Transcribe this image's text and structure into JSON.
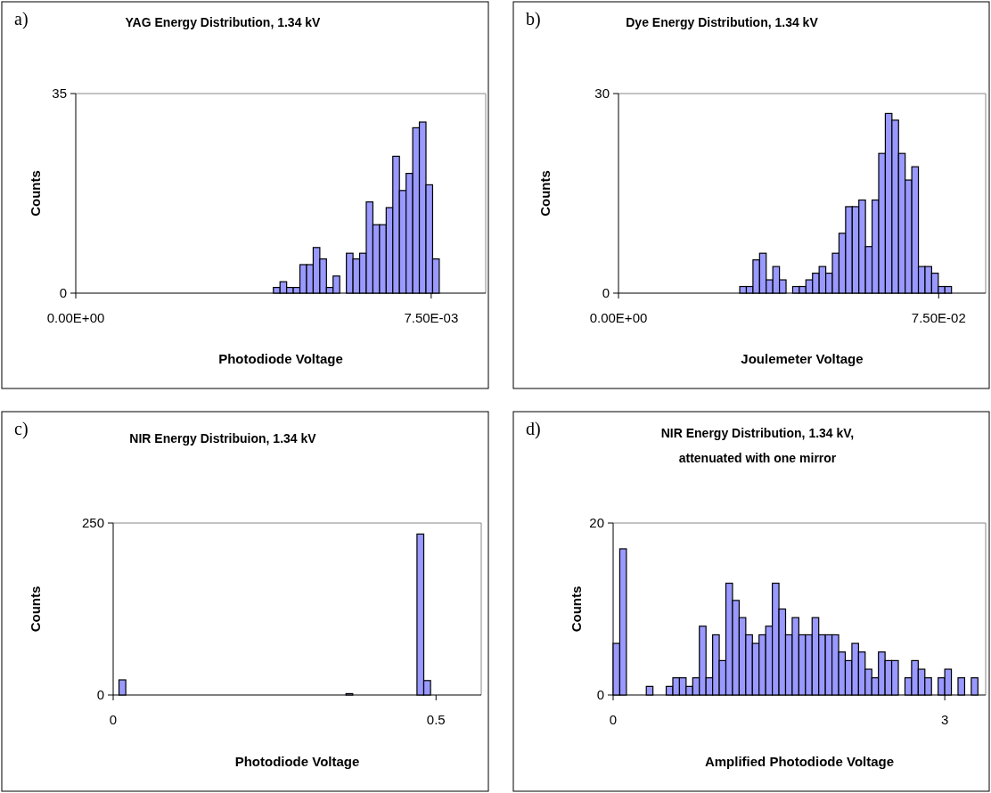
{
  "chart_data": [
    {
      "type": "histogram",
      "title": "YAG Energy Distribution, 1.34 kV",
      "xlabel": "Photodiode Voltage",
      "ylabel": "Counts",
      "annotations": [
        "a)"
      ],
      "color": "#9999ff",
      "bins": [
        0.00417,
        0.00431,
        0.00445,
        0.00459,
        0.00473,
        0.00487,
        0.00501,
        0.00515,
        0.00529,
        0.00543,
        0.00557,
        0.00571,
        0.00585,
        0.00599,
        0.00613,
        0.00627,
        0.00641,
        0.00655,
        0.00669,
        0.00683,
        0.00697,
        0.00711,
        0.00725,
        0.00739,
        0.00753,
        0.00767
      ],
      "values": [
        1,
        2,
        1,
        1,
        5,
        5,
        8,
        6,
        1,
        3,
        0,
        7,
        6,
        7,
        16,
        12,
        12,
        15,
        24,
        18,
        21,
        29,
        30,
        19,
        6
      ],
      "xlim": [
        0,
        0.00865
      ],
      "xticks": [
        {
          "value": 0,
          "label": "0.00E+00"
        },
        {
          "value": 0.0075,
          "label": "7.50E-03"
        }
      ],
      "ylim": [
        0,
        35
      ],
      "yticks": [
        0,
        35
      ]
    },
    {
      "type": "histogram",
      "title": "Dye Energy Distribution, 1.34 kV",
      "xlabel": "Joulemeter Voltage",
      "ylabel": "Counts",
      "annotations": [
        "b)"
      ],
      "color": "#9999ff",
      "bins": [
        0.0284,
        0.02995,
        0.0315,
        0.03305,
        0.0346,
        0.03615,
        0.0377,
        0.03925,
        0.0408,
        0.04235,
        0.0439,
        0.04545,
        0.047,
        0.04855,
        0.0501,
        0.05165,
        0.0532,
        0.05475,
        0.0563,
        0.05785,
        0.0594,
        0.06095,
        0.0625,
        0.06405,
        0.0656,
        0.06715,
        0.0687,
        0.07025,
        0.0718,
        0.07335,
        0.0749,
        0.07645,
        0.078
      ],
      "values": [
        1,
        1,
        5,
        6,
        2,
        4,
        2,
        0,
        1,
        1,
        2,
        3,
        4,
        3,
        6,
        9,
        13,
        13,
        14,
        7,
        14,
        21,
        27,
        26,
        21,
        17,
        19,
        4,
        4,
        3,
        1,
        1
      ],
      "xlim": [
        0,
        0.086
      ],
      "xticks": [
        {
          "value": 0,
          "label": "0.00E+00"
        },
        {
          "value": 0.075,
          "label": "7.50E-02"
        }
      ],
      "ylim": [
        0,
        30
      ],
      "yticks": [
        0,
        30
      ]
    },
    {
      "type": "histogram",
      "title": "NIR Energy Distribuion, 1.34 kV",
      "xlabel": "Photodiode Voltage",
      "ylabel": "Counts",
      "annotations": [
        "c)"
      ],
      "color": "#9999ff",
      "bins": [
        0.009,
        0.0195,
        0.3605,
        0.371,
        0.4705,
        0.481,
        0.4915
      ],
      "values": [
        22,
        0,
        2,
        0,
        234,
        21
      ],
      "xlim": [
        0,
        0.57
      ],
      "xticks": [
        0,
        0.5
      ],
      "ylim": [
        0,
        250
      ],
      "yticks": [
        0,
        250
      ]
    },
    {
      "type": "histogram",
      "title": "NIR Energy Distribution, 1.34 kV,\nattenuated with one mirror",
      "xlabel": "Amplified Photodiode Voltage",
      "ylabel": "Counts",
      "annotations": [
        "d)"
      ],
      "color": "#9999ff",
      "bins": [
        0,
        0.06,
        0.12,
        0.18,
        0.24,
        0.3,
        0.36,
        0.42,
        0.48,
        0.54,
        0.6,
        0.66,
        0.72,
        0.78,
        0.84,
        0.9,
        0.96,
        1.02,
        1.08,
        1.14,
        1.2,
        1.26,
        1.32,
        1.38,
        1.44,
        1.5,
        1.56,
        1.62,
        1.68,
        1.74,
        1.8,
        1.86,
        1.92,
        1.98,
        2.04,
        2.1,
        2.16,
        2.22,
        2.28,
        2.34,
        2.4,
        2.46,
        2.52,
        2.58,
        2.64,
        2.7,
        2.76,
        2.82,
        2.88,
        2.94,
        3,
        3.06,
        3.12,
        3.18,
        3.24,
        3.3
      ],
      "values": [
        6,
        17,
        0,
        0,
        0,
        1,
        0,
        0,
        1,
        2,
        2,
        1,
        2,
        8,
        2,
        7,
        4,
        13,
        11,
        9,
        7,
        6,
        7,
        8,
        13,
        10,
        7,
        9,
        7,
        7,
        9,
        7,
        7,
        7,
        5,
        4,
        6,
        5,
        3,
        2,
        5,
        4,
        4,
        0,
        2,
        4,
        3,
        2,
        0,
        2,
        3,
        0,
        2,
        0,
        2
      ],
      "xlim": [
        0,
        3.37
      ],
      "xticks": [
        0,
        3
      ],
      "ylim": [
        0,
        20
      ],
      "yticks": [
        0,
        20
      ]
    }
  ]
}
